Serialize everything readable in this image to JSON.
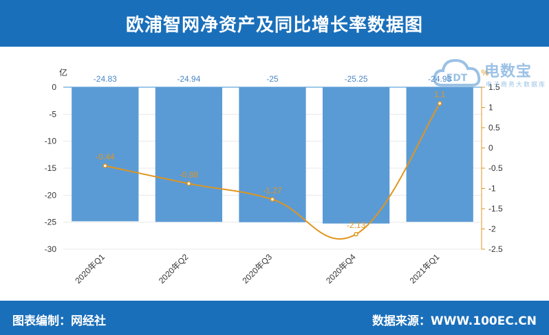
{
  "header": {
    "title": "欧浦智网净资产及同比增长率数据图"
  },
  "footer": {
    "left": "图表编制：网经社",
    "right": "数据来源：WWW.100EC.CN"
  },
  "watermark": {
    "text": "电数宝",
    "sub": "电子商务大数据库"
  },
  "chart_data": {
    "type": "bar",
    "categories": [
      "2020年Q1",
      "2020年Q2",
      "2020年Q3",
      "2020年Q4",
      "2021年Q1"
    ],
    "series": [
      {
        "name": "",
        "kind": "bar",
        "axis": "left",
        "values": [
          -24.83,
          -24.94,
          -25,
          -25.25,
          -24.93
        ],
        "labels": [
          "-24.83",
          "-24.94",
          "-25",
          "-25.25",
          "-24.93"
        ],
        "color": "#5b9bd5"
      },
      {
        "name": "",
        "kind": "line",
        "axis": "right",
        "values": [
          -0.44,
          -0.88,
          -1.27,
          -2.13,
          1.1
        ],
        "labels": [
          "-0.44",
          "-0.88",
          "-1.27",
          "-2.13",
          "1.1"
        ],
        "color": "#e0951e"
      }
    ],
    "y_left": {
      "unit": "亿",
      "min": -30,
      "max": 0,
      "ticks": [
        0,
        -5,
        -10,
        -15,
        -20,
        -25,
        -30
      ]
    },
    "y_right": {
      "unit": "%",
      "min": -2.5,
      "max": 1.5,
      "ticks": [
        "1.5",
        "1",
        "0.5",
        "0",
        "-0.5",
        "-1",
        "-1.5",
        "-2",
        "-2.5"
      ]
    },
    "grid": true,
    "legend": "none"
  }
}
